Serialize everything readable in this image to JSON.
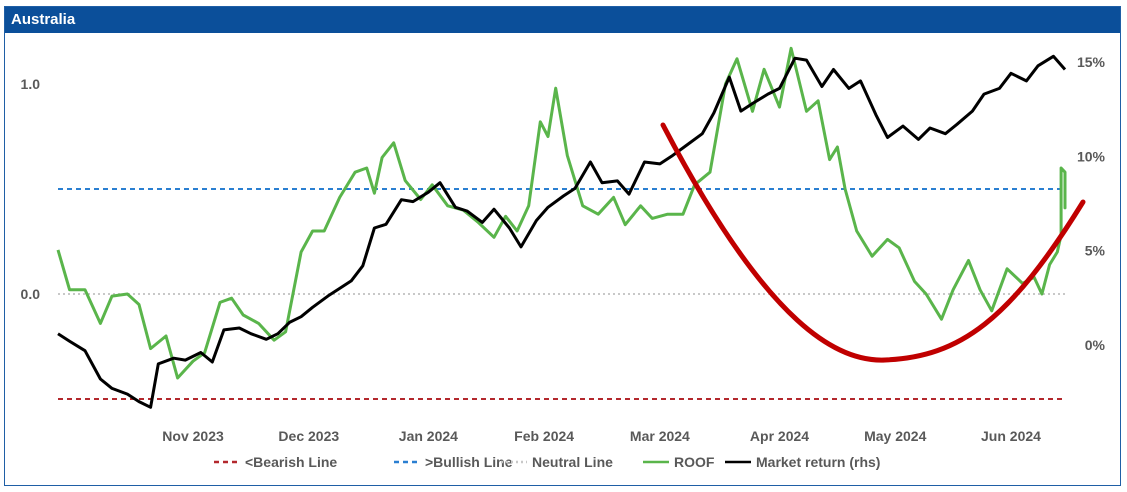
{
  "title": "Australia",
  "colors": {
    "header_bg": "#0b4f9a",
    "roof": "#5ab54b",
    "market": "#000000",
    "bearish": "#b3282d",
    "bullish": "#2a7fd1",
    "neutral": "#c8c8c8",
    "annotation_curve": "#c00000"
  },
  "chart_data": {
    "type": "line",
    "title": "Australia",
    "x_tick_labels": [
      "Nov 2023",
      "Dec 2023",
      "Jan 2024",
      "Feb 2024",
      "Mar 2024",
      "Apr 2024",
      "May 2024",
      "Jun 2024"
    ],
    "x_range": [
      "2023-10-11",
      "2024-06-28"
    ],
    "y_left": {
      "ticks": [
        0.0,
        1.0
      ],
      "tick_labels": [
        "0.0",
        "1.0"
      ],
      "range": [
        -0.6,
        1.2
      ]
    },
    "y_right": {
      "ticks": [
        0,
        5,
        10,
        15
      ],
      "tick_labels": [
        "0%",
        "5%",
        "10%",
        "15%"
      ],
      "range": [
        -3.5,
        15.6
      ],
      "unit": "%"
    },
    "reference_lines": [
      {
        "name": "<Bearish Line",
        "y": -0.5,
        "axis": "left",
        "style": "dashed"
      },
      {
        "name": ">Bullish Line",
        "y": 0.5,
        "axis": "left",
        "style": "dashed"
      },
      {
        "name": "Neutral Line",
        "y": 0.0,
        "axis": "left",
        "style": "dotted"
      }
    ],
    "series": [
      {
        "name": "ROOF",
        "axis": "left",
        "points": [
          [
            "2023-10-11",
            0.21
          ],
          [
            "2023-10-14",
            0.02
          ],
          [
            "2023-10-18",
            0.02
          ],
          [
            "2023-10-22",
            -0.14
          ],
          [
            "2023-10-25",
            -0.01
          ],
          [
            "2023-10-29",
            0.0
          ],
          [
            "2023-11-01",
            -0.05
          ],
          [
            "2023-11-04",
            -0.26
          ],
          [
            "2023-11-08",
            -0.2
          ],
          [
            "2023-11-11",
            -0.4
          ],
          [
            "2023-11-15",
            -0.32
          ],
          [
            "2023-11-18",
            -0.28
          ],
          [
            "2023-11-22",
            -0.04
          ],
          [
            "2023-11-25",
            -0.02
          ],
          [
            "2023-11-28",
            -0.1
          ],
          [
            "2023-12-02",
            -0.14
          ],
          [
            "2023-12-06",
            -0.22
          ],
          [
            "2023-12-09",
            -0.18
          ],
          [
            "2023-12-13",
            0.2
          ],
          [
            "2023-12-16",
            0.3
          ],
          [
            "2023-12-19",
            0.3
          ],
          [
            "2023-12-23",
            0.46
          ],
          [
            "2023-12-27",
            0.58
          ],
          [
            "2023-12-30",
            0.6
          ],
          [
            "2024-01-01",
            0.48
          ],
          [
            "2024-01-03",
            0.65
          ],
          [
            "2024-01-06",
            0.72
          ],
          [
            "2024-01-09",
            0.54
          ],
          [
            "2024-01-13",
            0.45
          ],
          [
            "2024-01-16",
            0.52
          ],
          [
            "2024-01-20",
            0.42
          ],
          [
            "2024-01-24",
            0.4
          ],
          [
            "2024-01-28",
            0.34
          ],
          [
            "2024-02-01",
            0.27
          ],
          [
            "2024-02-04",
            0.37
          ],
          [
            "2024-02-07",
            0.3
          ],
          [
            "2024-02-10",
            0.42
          ],
          [
            "2024-02-13",
            0.82
          ],
          [
            "2024-02-15",
            0.75
          ],
          [
            "2024-02-17",
            0.98
          ],
          [
            "2024-02-20",
            0.66
          ],
          [
            "2024-02-24",
            0.42
          ],
          [
            "2024-02-28",
            0.38
          ],
          [
            "2024-03-03",
            0.46
          ],
          [
            "2024-03-06",
            0.33
          ],
          [
            "2024-03-10",
            0.42
          ],
          [
            "2024-03-13",
            0.36
          ],
          [
            "2024-03-17",
            0.38
          ],
          [
            "2024-03-21",
            0.38
          ],
          [
            "2024-03-24",
            0.52
          ],
          [
            "2024-03-28",
            0.58
          ],
          [
            "2024-04-01",
            1.0
          ],
          [
            "2024-04-04",
            1.12
          ],
          [
            "2024-04-08",
            0.87
          ],
          [
            "2024-04-11",
            1.07
          ],
          [
            "2024-04-15",
            0.89
          ],
          [
            "2024-04-18",
            1.17
          ],
          [
            "2024-04-22",
            0.87
          ],
          [
            "2024-04-25",
            0.92
          ],
          [
            "2024-04-28",
            0.64
          ],
          [
            "2024-04-30",
            0.7
          ],
          [
            "2024-05-02",
            0.5
          ],
          [
            "2024-05-05",
            0.3
          ],
          [
            "2024-05-09",
            0.18
          ],
          [
            "2024-05-13",
            0.26
          ],
          [
            "2024-05-16",
            0.22
          ],
          [
            "2024-05-20",
            0.06
          ],
          [
            "2024-05-23",
            0.0
          ],
          [
            "2024-05-27",
            -0.12
          ],
          [
            "2024-05-30",
            0.02
          ],
          [
            "2024-06-03",
            0.16
          ],
          [
            "2024-06-06",
            0.02
          ],
          [
            "2024-06-09",
            -0.08
          ],
          [
            "2024-06-13",
            0.12
          ],
          [
            "2024-06-17",
            0.05
          ],
          [
            "2024-06-20",
            0.08
          ],
          [
            "2024-06-22",
            0.0
          ],
          [
            "2024-06-24",
            0.14
          ],
          [
            "2024-06-26",
            0.2
          ],
          [
            "2024-06-27",
            0.28
          ],
          [
            "2024-06-27",
            0.52
          ],
          [
            "2024-06-27",
            0.6
          ],
          [
            "2024-06-28",
            0.58
          ],
          [
            "2024-06-28",
            0.41
          ],
          [
            "2024-06-28",
            0.44
          ]
        ]
      },
      {
        "name": "Market return (rhs)",
        "axis": "right",
        "points": [
          [
            "2023-10-11",
            0.6
          ],
          [
            "2023-10-14",
            0.2
          ],
          [
            "2023-10-18",
            -0.3
          ],
          [
            "2023-10-22",
            -1.8
          ],
          [
            "2023-10-25",
            -2.3
          ],
          [
            "2023-10-29",
            -2.6
          ],
          [
            "2023-11-01",
            -3.0
          ],
          [
            "2023-11-04",
            -3.3
          ],
          [
            "2023-11-06",
            -1.0
          ],
          [
            "2023-11-10",
            -0.7
          ],
          [
            "2023-11-13",
            -0.8
          ],
          [
            "2023-11-17",
            -0.4
          ],
          [
            "2023-11-20",
            -0.9
          ],
          [
            "2023-11-23",
            0.8
          ],
          [
            "2023-11-27",
            0.9
          ],
          [
            "2023-11-30",
            0.6
          ],
          [
            "2023-12-04",
            0.3
          ],
          [
            "2023-12-07",
            0.6
          ],
          [
            "2023-12-10",
            1.2
          ],
          [
            "2023-12-13",
            1.5
          ],
          [
            "2023-12-16",
            2.0
          ],
          [
            "2023-12-20",
            2.6
          ],
          [
            "2023-12-23",
            3.0
          ],
          [
            "2023-12-26",
            3.4
          ],
          [
            "2023-12-29",
            4.2
          ],
          [
            "2024-01-01",
            6.2
          ],
          [
            "2024-01-04",
            6.4
          ],
          [
            "2024-01-08",
            7.7
          ],
          [
            "2024-01-11",
            7.6
          ],
          [
            "2024-01-15",
            8.1
          ],
          [
            "2024-01-18",
            8.6
          ],
          [
            "2024-01-22",
            7.3
          ],
          [
            "2024-01-25",
            7.1
          ],
          [
            "2024-01-29",
            6.5
          ],
          [
            "2024-02-01",
            7.2
          ],
          [
            "2024-02-05",
            6.2
          ],
          [
            "2024-02-08",
            5.2
          ],
          [
            "2024-02-12",
            6.6
          ],
          [
            "2024-02-15",
            7.3
          ],
          [
            "2024-02-19",
            7.9
          ],
          [
            "2024-02-22",
            8.3
          ],
          [
            "2024-02-26",
            9.7
          ],
          [
            "2024-02-29",
            8.6
          ],
          [
            "2024-03-04",
            8.7
          ],
          [
            "2024-03-07",
            8.0
          ],
          [
            "2024-03-11",
            9.7
          ],
          [
            "2024-03-15",
            9.6
          ],
          [
            "2024-03-18",
            10.0
          ],
          [
            "2024-03-22",
            10.6
          ],
          [
            "2024-03-26",
            11.2
          ],
          [
            "2024-03-29",
            12.3
          ],
          [
            "2024-04-02",
            14.2
          ],
          [
            "2024-04-05",
            12.4
          ],
          [
            "2024-04-08",
            12.8
          ],
          [
            "2024-04-12",
            13.3
          ],
          [
            "2024-04-15",
            13.6
          ],
          [
            "2024-04-19",
            15.2
          ],
          [
            "2024-04-22",
            15.1
          ],
          [
            "2024-04-26",
            13.7
          ],
          [
            "2024-04-29",
            14.6
          ],
          [
            "2024-05-03",
            13.6
          ],
          [
            "2024-05-06",
            14.0
          ],
          [
            "2024-05-10",
            12.2
          ],
          [
            "2024-05-13",
            11.0
          ],
          [
            "2024-05-17",
            11.6
          ],
          [
            "2024-05-21",
            10.9
          ],
          [
            "2024-05-24",
            11.5
          ],
          [
            "2024-05-28",
            11.2
          ],
          [
            "2024-05-31",
            11.7
          ],
          [
            "2024-06-04",
            12.4
          ],
          [
            "2024-06-07",
            13.3
          ],
          [
            "2024-06-11",
            13.6
          ],
          [
            "2024-06-14",
            14.4
          ],
          [
            "2024-06-18",
            14.0
          ],
          [
            "2024-06-21",
            14.8
          ],
          [
            "2024-06-25",
            15.3
          ],
          [
            "2024-06-28",
            14.6
          ]
        ]
      }
    ],
    "annotation": {
      "type": "curve",
      "description_color": "#c00000"
    },
    "legend": {
      "position": "bottom",
      "entries": [
        "<Bearish Line",
        ">Bullish Line",
        "Neutral Line",
        "ROOF",
        "Market return (rhs)"
      ]
    },
    "grid": false
  }
}
